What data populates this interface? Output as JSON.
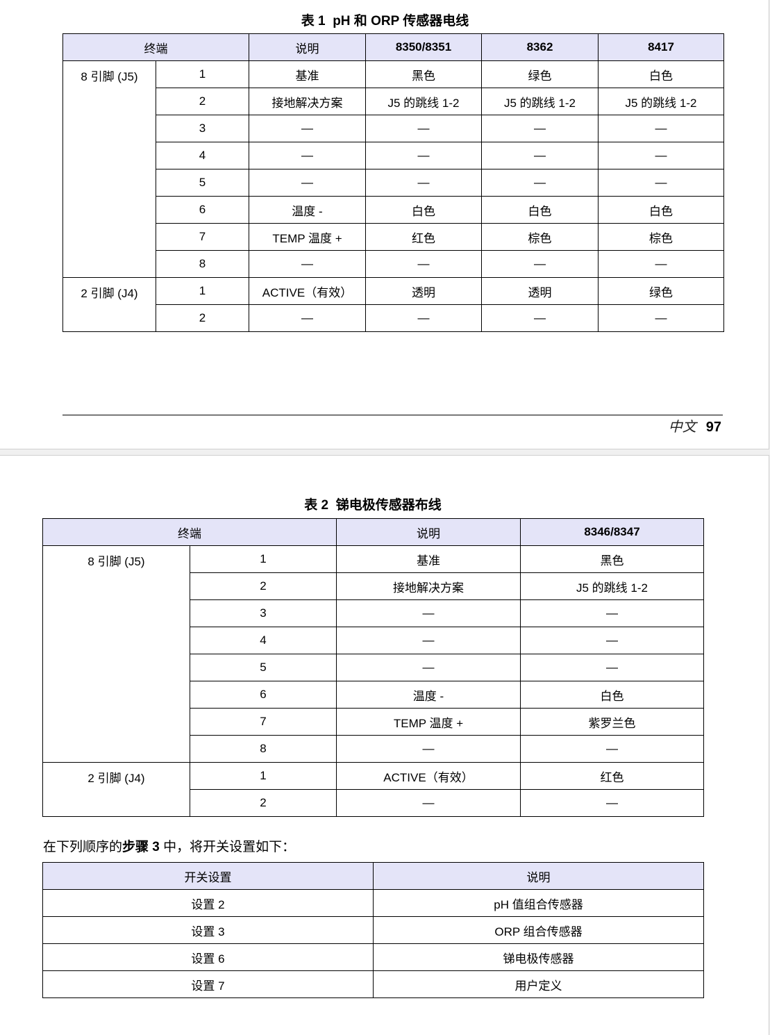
{
  "page1": {
    "caption_prefix": "表 1",
    "caption_title": "pH 和 ORP 传感器电线",
    "headers": [
      "终端",
      "说明",
      "8350/8351",
      "8362",
      "8417"
    ],
    "group1": "8 引脚 (J5)",
    "group2": "2 引脚 (J4)",
    "rows": [
      [
        "1",
        "基准",
        "黑色",
        "绿色",
        "白色"
      ],
      [
        "2",
        "接地解决方案",
        "J5 的跳线 1-2",
        "J5 的跳线 1-2",
        "J5 的跳线 1-2"
      ],
      [
        "3",
        "—",
        "—",
        "—",
        "—"
      ],
      [
        "4",
        "—",
        "—",
        "—",
        "—"
      ],
      [
        "5",
        "—",
        "—",
        "—",
        "—"
      ],
      [
        "6",
        "温度 -",
        "白色",
        "白色",
        "白色"
      ],
      [
        "7",
        "TEMP 温度 +",
        "红色",
        "棕色",
        "棕色"
      ],
      [
        "8",
        "—",
        "—",
        "—",
        "—"
      ],
      [
        "1",
        "ACTIVE（有效）",
        "透明",
        "透明",
        "绿色"
      ],
      [
        "2",
        "—",
        "—",
        "—",
        "—"
      ]
    ],
    "footer_lang": "中文",
    "footer_page": "97"
  },
  "page2": {
    "caption_prefix": "表 2",
    "caption_title": "锑电极传感器布线",
    "headers": [
      "终端",
      "说明",
      "8346/8347"
    ],
    "group1": "8 引脚 (J5)",
    "group2": "2 引脚 (J4)",
    "rows": [
      [
        "1",
        "基准",
        "黑色"
      ],
      [
        "2",
        "接地解决方案",
        "J5 的跳线 1-2"
      ],
      [
        "3",
        "—",
        "—"
      ],
      [
        "4",
        "—",
        "—"
      ],
      [
        "5",
        "—",
        "—"
      ],
      [
        "6",
        "温度 -",
        "白色"
      ],
      [
        "7",
        "TEMP 温度 +",
        "紫罗兰色"
      ],
      [
        "8",
        "—",
        "—"
      ],
      [
        "1",
        "ACTIVE（有效）",
        "红色"
      ],
      [
        "2",
        "—",
        "—"
      ]
    ],
    "paragraph_a": "在下列顺序的",
    "paragraph_b": "步骤 3",
    "paragraph_c": "中，将开关设置如下：",
    "switch_headers": [
      "开关设置",
      "说明"
    ],
    "switch_rows": [
      [
        "设置 2",
        "pH 值组合传感器"
      ],
      [
        "设置 3",
        "ORP 组合传感器"
      ],
      [
        "设置 6",
        "锑电极传感器"
      ],
      [
        "设置 7",
        "用户定义"
      ]
    ]
  }
}
